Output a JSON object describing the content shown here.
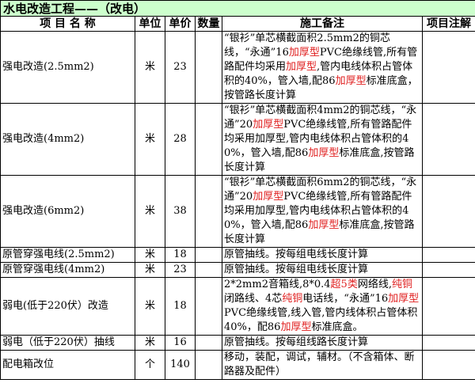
{
  "title": "水电改造工程——（改电）",
  "colors": {
    "title_bg": "#ccffcc",
    "highlight": "#e02020"
  },
  "headers": {
    "name": "项 目 名 称",
    "unit": "单位",
    "price": "单价",
    "qty": "数量",
    "notes": "施工备注",
    "remark": "项目注解"
  },
  "rows": [
    {
      "name": "强电改造(2.5mm2)",
      "unit": "米",
      "price": "23",
      "qty": "",
      "remark": "",
      "notes": [
        {
          "t": "“银衫”单芯横截面积2.5mm2的铜芯线，“永通”16"
        },
        {
          "t": "加厚型",
          "red": true
        },
        {
          "t": "PVC绝缘线管,所有管路配件均采用"
        },
        {
          "t": "加厚型",
          "red": true
        },
        {
          "t": ",管内电线体积占管体积的40%，管入墙,配86"
        },
        {
          "t": "加厚型",
          "red": true
        },
        {
          "t": "标准底盒，按管路长度计算"
        }
      ]
    },
    {
      "name": "强电改造(4mm2)",
      "unit": "米",
      "price": "28",
      "qty": "",
      "remark": "",
      "notes": [
        {
          "t": "“银衫”单芯横截面积4mm2的铜芯线，“永通”20"
        },
        {
          "t": "加厚型",
          "red": true
        },
        {
          "t": "PVC绝缘线管,所有管路配件均采用加厚型,管内电线体积占管体积的40%，管入墙,配86"
        },
        {
          "t": "加厚型",
          "red": true
        },
        {
          "t": "标准底盒,按管路长度计算"
        }
      ]
    },
    {
      "name": "强电改造(6mm2)",
      "unit": "米",
      "price": "38",
      "qty": "",
      "remark": "",
      "notes": [
        {
          "t": "“银衫”单芯横截面积6mm2的铜芯线，“永通”20"
        },
        {
          "t": "加厚型",
          "red": true
        },
        {
          "t": "PVC绝缘线管,所有管路配件均采用加厚型,管内电线体积占管体积的40%，管入墙,配86"
        },
        {
          "t": "加厚型",
          "red": true
        },
        {
          "t": "标准底盒,按管路长度计算"
        }
      ]
    },
    {
      "name": "原管穿强电线(2.5mm2)",
      "unit": "米",
      "price": "18",
      "qty": "",
      "remark": "",
      "notes": [
        {
          "t": "原管抽线。按每组电线长度计算"
        }
      ]
    },
    {
      "name": "原管穿强电线(4mm2)",
      "unit": "米",
      "price": "23",
      "qty": "",
      "remark": "",
      "notes": [
        {
          "t": "原管抽线。按每组电线长度计算"
        }
      ]
    },
    {
      "name": "弱电(低于220伏）改造",
      "unit": "米",
      "price": "18",
      "qty": "",
      "remark": "",
      "notes": [
        {
          "t": "2*2mm2音箱线,8*0.4"
        },
        {
          "t": "超5类",
          "red": true
        },
        {
          "t": "网络线,"
        },
        {
          "t": "纯铜",
          "red": true
        },
        {
          "t": "闭路线、4芯"
        },
        {
          "t": "纯铜",
          "red": true
        },
        {
          "t": "电话线，“永通”16"
        },
        {
          "t": "加厚型",
          "red": true
        },
        {
          "t": "PVC绝缘线管,线入管,管内线体积占管体积40%，配86"
        },
        {
          "t": "加厚型",
          "red": true
        },
        {
          "t": "标准底盒。"
        }
      ]
    },
    {
      "name": "弱电（低于220伏）抽线",
      "unit": "米",
      "price": "16",
      "qty": "",
      "remark": "",
      "notes": [
        {
          "t": "原管抽线。按每组线路长度计算"
        }
      ]
    },
    {
      "name": "配电箱改位",
      "unit": "个",
      "price": "140",
      "qty": "",
      "remark": "",
      "notes": [
        {
          "t": "移动，装配，调试，辅材。（不含箱体、断路器及配件）"
        }
      ]
    }
  ]
}
